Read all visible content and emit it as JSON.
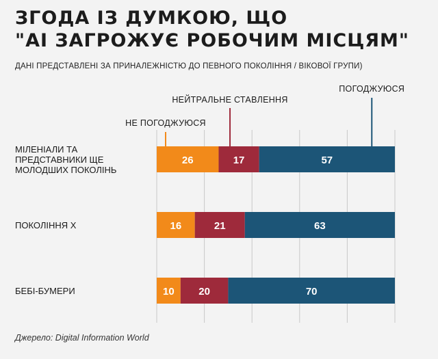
{
  "header": {
    "title_line1": "ЗГОДА ІЗ ДУМКОЮ, ЩО",
    "title_line2": "\"AI ЗАГРОЖУЄ РОБОЧИМ МІСЦЯМ\"",
    "subtitle": "ДАНІ ПРЕДСТАВЛЕНІ ЗА ПРИНАЛЕЖНІСТЮ ДО ПЕВНОГО ПОКОЛІННЯ / ВІКОВОЇ ГРУПИ)"
  },
  "footer": {
    "source": "Джерело: Digital Information World"
  },
  "chart_data": {
    "type": "bar",
    "orientation": "horizontal",
    "stacked": true,
    "title": "ЗГОДА ІЗ ДУМКОЮ, ЩО \"AI ЗАГРОЖУЄ РОБОЧИМ МІСЦЯМ\"",
    "subtitle": "ДАНІ ПРЕДСТАВЛЕНІ ЗА ПРИНАЛЕЖНІСТЮ ДО ПЕВНОГО ПОКОЛІННЯ / ВІКОВОЇ ГРУПИ)",
    "categories": [
      [
        "МІЛЕНІАЛИ ТА",
        "ПРЕДСТАВНИКИ ЩЕ",
        "МОЛОДШИХ ПОКОЛІНЬ"
      ],
      [
        "ПОКОЛІННЯ X"
      ],
      [
        "БЕБІ-БУМЕРИ"
      ]
    ],
    "series": [
      {
        "name": "НЕ ПОГОДЖУЮСЯ",
        "color": "#f28a1a",
        "values": [
          26,
          16,
          10
        ]
      },
      {
        "name": "НЕЙТРАЛЬНЕ СТАВЛЕННЯ",
        "color": "#9e2a3b",
        "values": [
          17,
          21,
          20
        ]
      },
      {
        "name": "ПОГОДЖУЮСЯ",
        "color": "#1c5577",
        "values": [
          57,
          63,
          70
        ]
      }
    ],
    "xlim": [
      0,
      100
    ],
    "grid": true,
    "legend": "callout labels above the first bar",
    "colors": {
      "grid": "#c8c8c8",
      "value_text": "#ffffff"
    }
  }
}
